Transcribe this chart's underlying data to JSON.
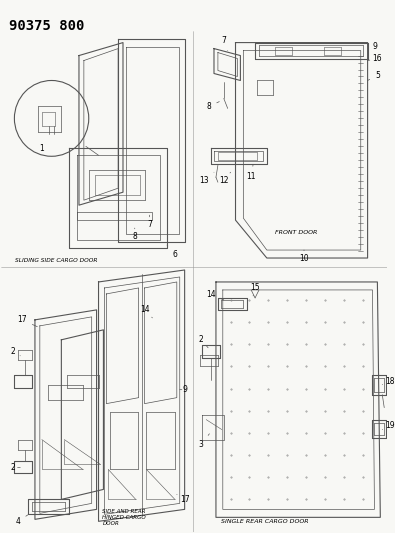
{
  "title": "90375 800",
  "bg_color": "#f5f5f0",
  "title_fontsize": 10,
  "title_weight": "bold",
  "title_font": "monospace",
  "labels": {
    "sliding_side": "SLIDING SIDE CARGO DOOR",
    "front_door": "FRONT DOOR",
    "side_rear": "SIDE AND REAR\nHINGED CARGO\nDOOR",
    "single_rear": "SINGLE REAR CARGO DOOR"
  }
}
